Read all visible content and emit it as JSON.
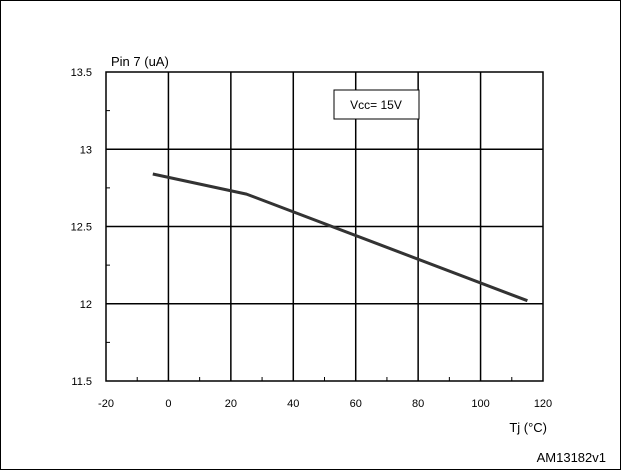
{
  "chart_data": {
    "type": "line",
    "ylabel": "Pin 7 (uA)",
    "xlabel": "Tj (°C)",
    "annotation": "Vcc= 15V",
    "figure_id": "AM13182v1",
    "xlim": [
      -20,
      120
    ],
    "ylim": [
      11.5,
      13.5
    ],
    "x_ticks": [
      "-20",
      "0",
      "20",
      "40",
      "60",
      "80",
      "100",
      "120"
    ],
    "y_ticks": [
      "11.5",
      "12",
      "12.5",
      "13",
      "13.5"
    ],
    "grid": true,
    "series": [
      {
        "x": [
          -5,
          25,
          115
        ],
        "y": [
          12.84,
          12.71,
          12.02
        ]
      }
    ]
  }
}
